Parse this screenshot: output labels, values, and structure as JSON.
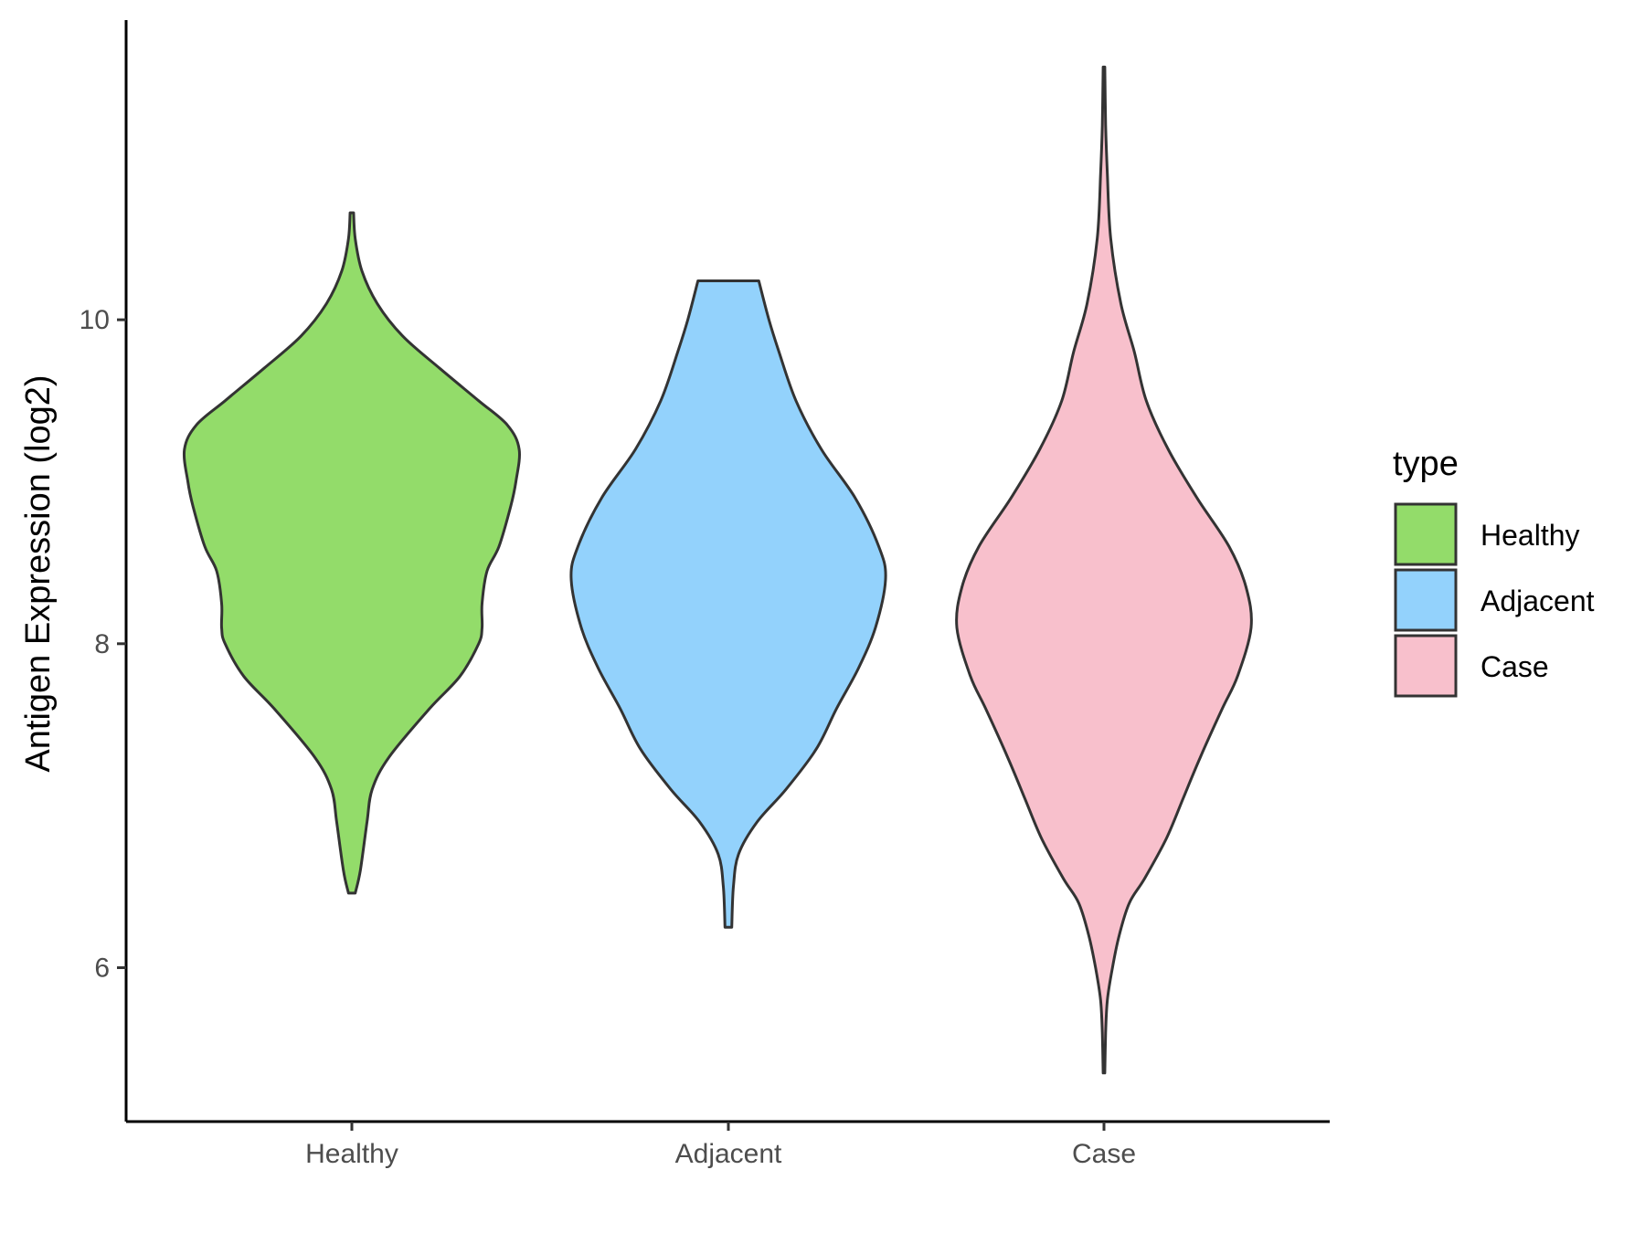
{
  "chart_data": {
    "type": "violin",
    "title": "",
    "xlabel": "",
    "ylabel": "Antigen Expression (log2)",
    "ylim": [
      5.05,
      11.85
    ],
    "yticks": [
      6,
      8,
      10
    ],
    "categories": [
      "Healthy",
      "Adjacent",
      "Case"
    ],
    "legend": {
      "title": "type",
      "placement": "right",
      "entries": [
        "Healthy",
        "Adjacent",
        "Case"
      ]
    },
    "series": [
      {
        "category": "Healthy",
        "color": "#93dc6a",
        "min": 6.46,
        "max": 10.66,
        "density_profile": [
          [
            6.46,
            0.02
          ],
          [
            6.6,
            0.05
          ],
          [
            6.9,
            0.09
          ],
          [
            7.1,
            0.12
          ],
          [
            7.3,
            0.22
          ],
          [
            7.6,
            0.46
          ],
          [
            7.8,
            0.64
          ],
          [
            8.0,
            0.75
          ],
          [
            8.1,
            0.77
          ],
          [
            8.25,
            0.77
          ],
          [
            8.45,
            0.8
          ],
          [
            8.6,
            0.87
          ],
          [
            8.85,
            0.94
          ],
          [
            9.0,
            0.97
          ],
          [
            9.2,
            0.99
          ],
          [
            9.35,
            0.92
          ],
          [
            9.5,
            0.75
          ],
          [
            9.7,
            0.52
          ],
          [
            9.9,
            0.3
          ],
          [
            10.1,
            0.15
          ],
          [
            10.3,
            0.06
          ],
          [
            10.5,
            0.02
          ],
          [
            10.66,
            0.01
          ]
        ]
      },
      {
        "category": "Adjacent",
        "color": "#93d2fc",
        "min": 6.25,
        "max": 10.24,
        "density_profile": [
          [
            6.25,
            0.02
          ],
          [
            6.5,
            0.03
          ],
          [
            6.7,
            0.06
          ],
          [
            6.9,
            0.17
          ],
          [
            7.1,
            0.34
          ],
          [
            7.35,
            0.52
          ],
          [
            7.6,
            0.64
          ],
          [
            7.85,
            0.77
          ],
          [
            8.1,
            0.87
          ],
          [
            8.4,
            0.93
          ],
          [
            8.6,
            0.89
          ],
          [
            8.9,
            0.75
          ],
          [
            9.2,
            0.55
          ],
          [
            9.5,
            0.4
          ],
          [
            9.8,
            0.3
          ],
          [
            10.0,
            0.24
          ],
          [
            10.24,
            0.18
          ]
        ]
      },
      {
        "category": "Case",
        "color": "#f8c0cc",
        "min": 5.35,
        "max": 11.56,
        "density_profile": [
          [
            5.35,
            0.005
          ],
          [
            5.6,
            0.01
          ],
          [
            5.8,
            0.02
          ],
          [
            6.0,
            0.05
          ],
          [
            6.2,
            0.09
          ],
          [
            6.4,
            0.15
          ],
          [
            6.55,
            0.24
          ],
          [
            6.8,
            0.37
          ],
          [
            7.05,
            0.47
          ],
          [
            7.3,
            0.57
          ],
          [
            7.6,
            0.7
          ],
          [
            7.8,
            0.79
          ],
          [
            8.1,
            0.87
          ],
          [
            8.35,
            0.84
          ],
          [
            8.6,
            0.74
          ],
          [
            8.9,
            0.55
          ],
          [
            9.2,
            0.38
          ],
          [
            9.5,
            0.25
          ],
          [
            9.8,
            0.18
          ],
          [
            10.1,
            0.1
          ],
          [
            10.5,
            0.04
          ],
          [
            10.9,
            0.02
          ],
          [
            11.2,
            0.01
          ],
          [
            11.56,
            0.005
          ]
        ]
      }
    ]
  }
}
